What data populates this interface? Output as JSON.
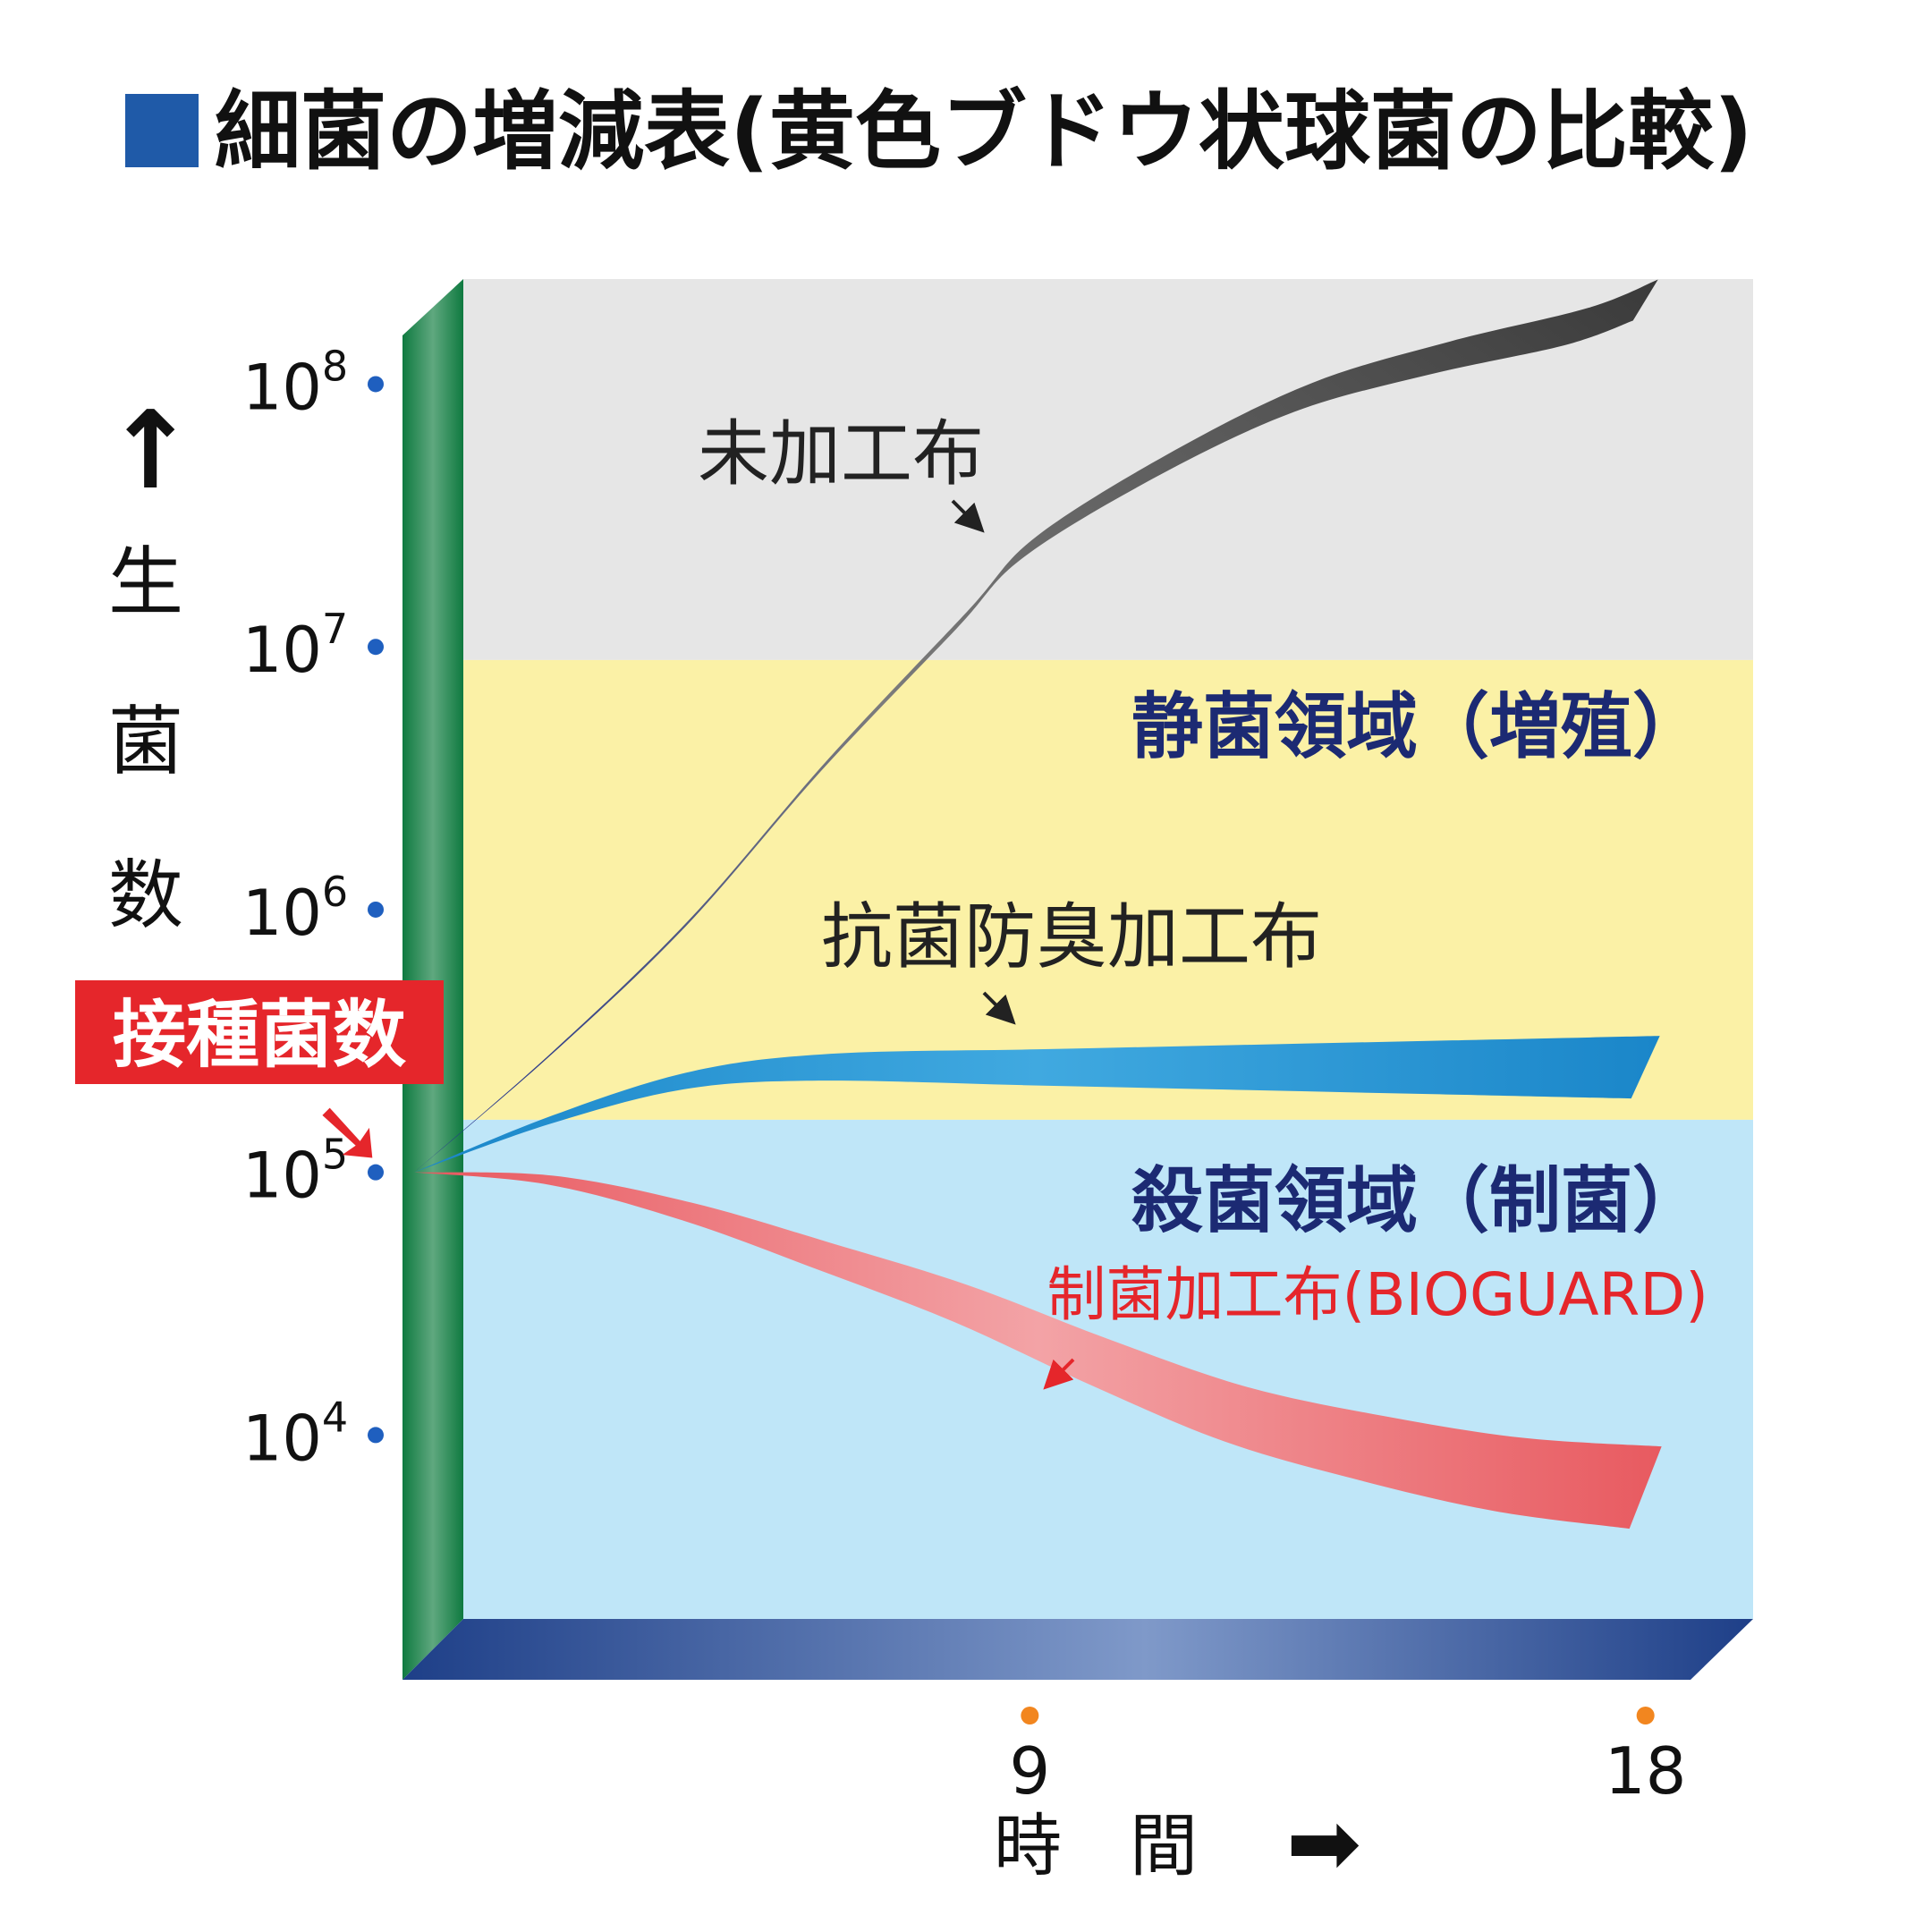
{
  "title_marker": "■",
  "title": "細菌の増減表(黄色ブドウ状球菌の比較)",
  "colors": {
    "title_marker": "#1f5aa8",
    "region_growth": "#e6e6e6",
    "region_static": "#fbf1a6",
    "region_kill": "#bfe6f8",
    "wall": "#148a4c",
    "floor": "#244a96",
    "y_tick_dot": "#1f5fbf",
    "x_tick_dot": "#f2861f",
    "static_label": "#1c2a73",
    "kill_label": "#1c2a73",
    "bioguard_label": "#e5262b",
    "inoculum_badge": "#e5262b"
  },
  "y_axis": {
    "arrow": "↑",
    "label_chars": [
      "生",
      "菌",
      "数"
    ]
  },
  "x_axis": {
    "label": "時　間",
    "arrow": "➡"
  },
  "inoculum": {
    "label": "接種菌数",
    "pointer": "➘"
  },
  "chart_data": {
    "type": "line",
    "title": "細菌の増減表(黄色ブドウ状球菌の比較)",
    "xlabel": "時間",
    "ylabel": "生菌数",
    "y_scale": "log",
    "ylim": [
      3.3,
      8.4
    ],
    "xlim": [
      0,
      19.9
    ],
    "y_ticks": [
      {
        "value": 8,
        "base": "10",
        "exp": "8"
      },
      {
        "value": 7,
        "base": "10",
        "exp": "7"
      },
      {
        "value": 6,
        "base": "10",
        "exp": "6"
      },
      {
        "value": 5,
        "base": "10",
        "exp": "5"
      },
      {
        "value": 4,
        "base": "10",
        "exp": "4"
      }
    ],
    "x_ticks": [
      9,
      18
    ],
    "regions": [
      {
        "name": "growth",
        "from": 6.95,
        "to": 8.4,
        "label": ""
      },
      {
        "name": "static",
        "from": 5.2,
        "to": 6.95,
        "label": "静菌領域（増殖）"
      },
      {
        "name": "kill",
        "from": 3.3,
        "to": 5.2,
        "label": "殺菌領域（制菌）"
      }
    ],
    "series": [
      {
        "name": "未加工布",
        "x": [
          0,
          2,
          4,
          6,
          8,
          9,
          11,
          13,
          15,
          17,
          18
        ],
        "y": [
          5.0,
          5.45,
          5.95,
          6.55,
          7.1,
          7.38,
          7.7,
          7.95,
          8.1,
          8.22,
          8.32
        ]
      },
      {
        "name": "抗菌防臭加工布",
        "x": [
          0,
          2,
          4,
          6,
          9,
          12,
          15,
          18
        ],
        "y": [
          5.0,
          5.2,
          5.35,
          5.4,
          5.4,
          5.4,
          5.4,
          5.4
        ]
      },
      {
        "name": "制菌加工布(BIOGUARD)",
        "x": [
          0,
          2,
          4,
          6,
          8,
          10,
          12,
          14,
          16,
          18
        ],
        "y": [
          5.0,
          4.97,
          4.85,
          4.68,
          4.5,
          4.28,
          4.08,
          3.95,
          3.85,
          3.8
        ]
      }
    ]
  }
}
